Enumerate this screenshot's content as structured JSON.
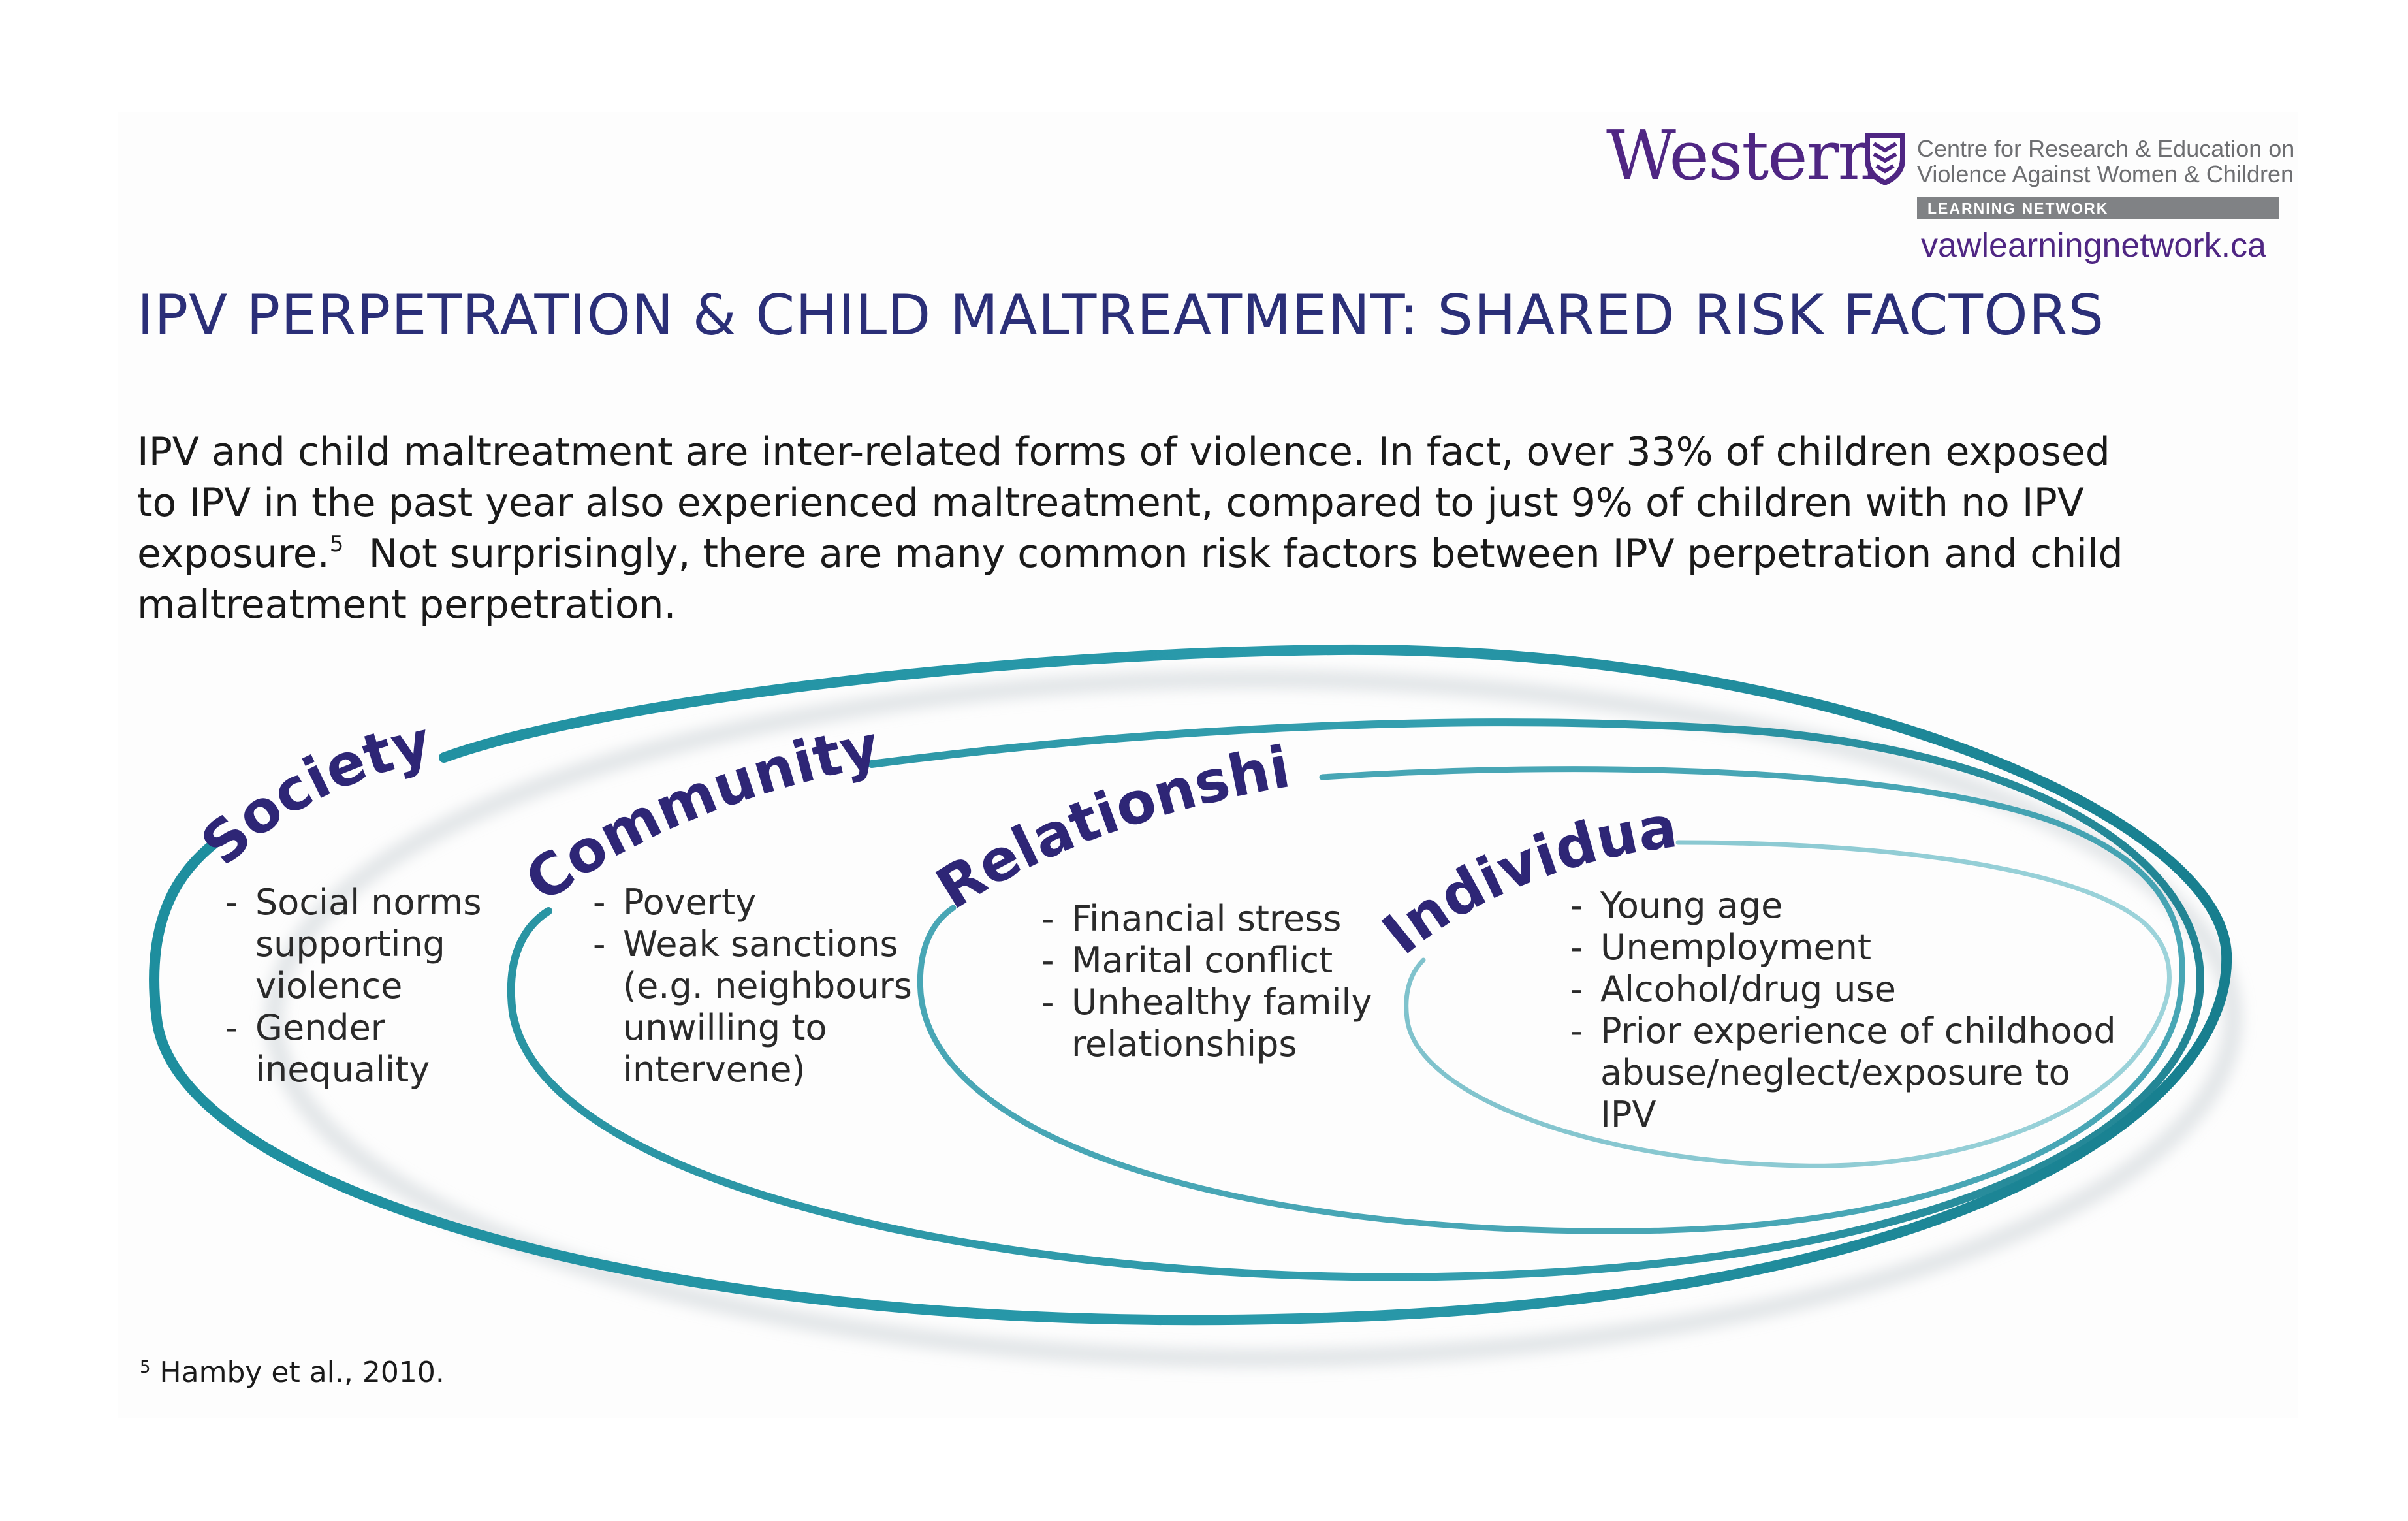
{
  "header": {
    "logo_word": "Western",
    "centre_line_1": "Centre for Research & Education on",
    "centre_line_2": "Violence Against Women & Children",
    "network_label": "LEARNING NETWORK",
    "website": "vawlearningnetwork.ca"
  },
  "title": "IPV PERPETRATION & CHILD MALTREATMENT: SHARED RISK FACTORS",
  "intro": {
    "line_1": "IPV and child maltreatment are inter-related forms of violence. In fact, over 33% of children exposed",
    "line_2": "to IPV in the past year also experienced maltreatment, compared to just 9% of children with no IPV",
    "line_3a": "exposure.",
    "line_3_sup": "5",
    "line_3b": "  Not surprisingly, there are many common risk factors between IPV perpetration and child",
    "line_4": "maltreatment perpetration."
  },
  "diagram": {
    "levels": [
      {
        "label": "Society",
        "items": [
          "Social norms supporting violence",
          "Gender inequality"
        ]
      },
      {
        "label": "Community",
        "items": [
          "Poverty",
          "Weak sanctions (e.g. neighbours unwilling to intervene)"
        ]
      },
      {
        "label": "Relationship",
        "items": [
          "Financial stress",
          "Marital conflict",
          "Unhealthy family relationships"
        ]
      },
      {
        "label": "Individual",
        "items": [
          "Young age",
          "Unemployment",
          "Alcohol/drug use",
          "Prior experience of childhood abuse/neglect/exposure to IPV"
        ]
      }
    ],
    "colors": {
      "ring": "#1e8e9e",
      "ring_light": "#8ccbd3",
      "label": "#2e2676",
      "shadow": "#cfd4d8"
    }
  },
  "footnote": {
    "marker": "5",
    "text": " Hamby et al., 2010."
  }
}
